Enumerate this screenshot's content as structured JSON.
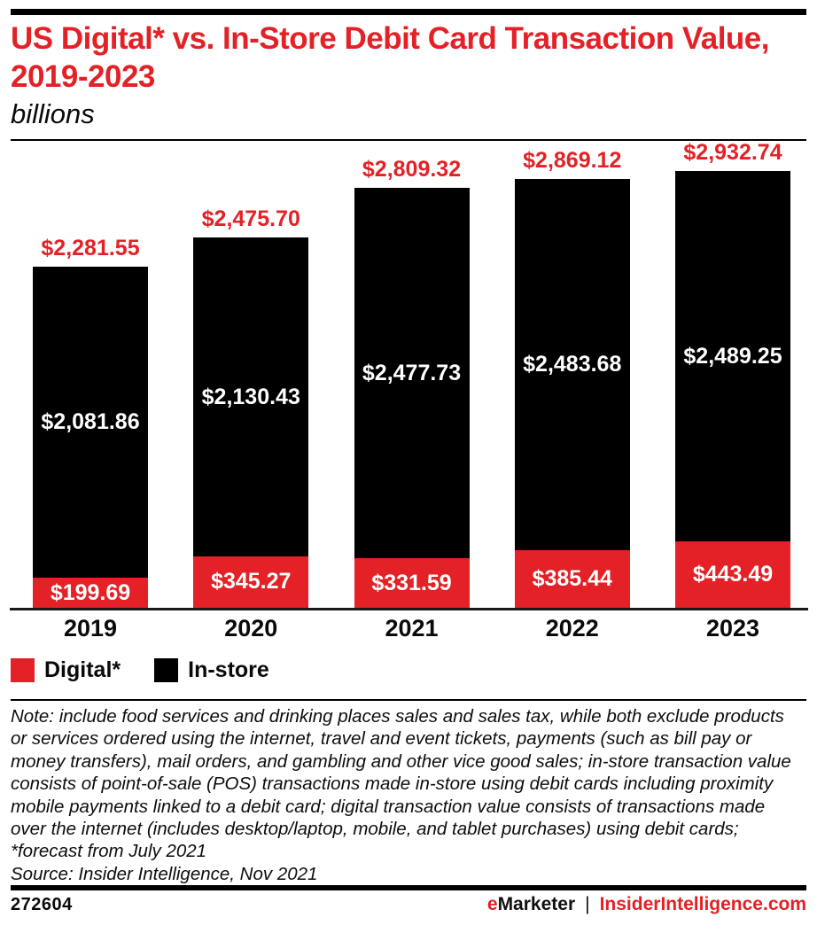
{
  "header": {
    "title": "US Digital* vs. In-Store Debit Card Transaction Value, 2019-2023",
    "subtitle": "billions"
  },
  "chart_data": {
    "type": "bar",
    "stacked": true,
    "title": "US Digital* vs. In-Store Debit Card Transaction Value, 2019-2023",
    "unit_label": "billions",
    "categories": [
      "2019",
      "2020",
      "2021",
      "2022",
      "2023"
    ],
    "series": [
      {
        "name": "Digital*",
        "color": "#e32126",
        "values": [
          199.69,
          345.27,
          331.59,
          385.44,
          443.49
        ],
        "labels": [
          "$199.69",
          "$345.27",
          "$331.59",
          "$385.44",
          "$443.49"
        ]
      },
      {
        "name": "In-store",
        "color": "#000000",
        "values": [
          2081.86,
          2130.43,
          2477.73,
          2483.68,
          2489.25
        ],
        "labels": [
          "$2,081.86",
          "$2,130.43",
          "$2,477.73",
          "$2,483.68",
          "$2,489.25"
        ]
      }
    ],
    "totals": [
      2281.55,
      2475.7,
      2809.32,
      2869.12,
      2932.74
    ],
    "total_labels": [
      "$2,281.55",
      "$2,475.70",
      "$2,809.32",
      "$2,869.12",
      "$2,932.74"
    ],
    "ylim": [
      0,
      3130
    ],
    "grid": false,
    "legend_position": "bottom"
  },
  "legend": {
    "items": [
      {
        "id": "digital",
        "label": "Digital*",
        "color": "#e32126"
      },
      {
        "id": "instore",
        "label": "In-store",
        "color": "#000000"
      }
    ]
  },
  "note": "Note: include food services and drinking places sales and sales tax, while both exclude products or services ordered using the internet, travel and event tickets, payments (such as bill pay or money transfers), mail orders, and gambling and other vice good sales; in-store transaction value consists of point-of-sale (POS) transactions made in-store using debit cards including proximity mobile payments linked to a debit card; digital transaction value consists of transactions made over the internet (includes desktop/laptop, mobile, and tablet purchases) using debit cards; *forecast from July 2021",
  "source": "Source: Insider Intelligence, Nov 2021",
  "footer": {
    "chart_id": "272604",
    "brand_prefix": "e",
    "brand_name": "Marketer",
    "separator": "|",
    "site": "InsiderIntelligence.com"
  },
  "colors": {
    "accent_red": "#e32126",
    "bar_black": "#000000",
    "label_white": "#ffffff"
  }
}
